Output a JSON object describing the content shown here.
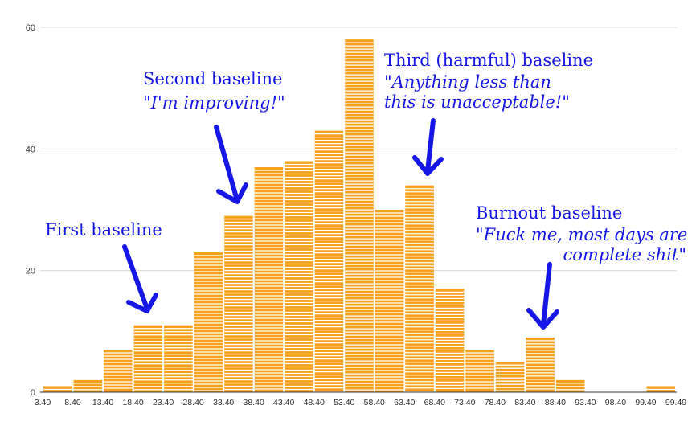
{
  "chart_data": {
    "type": "bar",
    "title": "",
    "xlabel": "",
    "ylabel": "",
    "ylim": [
      0,
      60
    ],
    "yticks": [
      0,
      20,
      40,
      60
    ],
    "grid": true,
    "colors": {
      "bar": "#f7a01c",
      "stripe": "#ffffff",
      "grid": "#d9d9d9",
      "axis": "#333333",
      "annotation": "#1616e6"
    },
    "categories": [
      "3.40",
      "8.40",
      "13.40",
      "18.40",
      "23.40",
      "28.40",
      "33.40",
      "38.40",
      "43.40",
      "48.40",
      "53.40",
      "58.40",
      "63.40",
      "68.40",
      "73.40",
      "78.40",
      "83.40",
      "88.40",
      "93.40",
      "98.40",
      "99.49"
    ],
    "values": [
      1,
      2,
      7,
      11,
      11,
      23,
      29,
      37,
      38,
      43,
      58,
      30,
      34,
      17,
      7,
      5,
      9,
      2,
      0,
      0,
      1
    ],
    "tick_labels": [
      "3.40",
      "8.40",
      "13.40",
      "18.40",
      "23.40",
      "28.40",
      "33.40",
      "38.40",
      "43.40",
      "48.40",
      "53.40",
      "58.40",
      "63.40",
      "68.40",
      "73.40",
      "78.40",
      "83.40",
      "88.40",
      "93.40",
      "98.40",
      "99.49",
      "99.49"
    ]
  },
  "annotations": {
    "first": {
      "title": "First baseline"
    },
    "second": {
      "title": "Second baseline",
      "quote": "\"I'm improving!\""
    },
    "third": {
      "title": "Third (harmful) baseline",
      "quote1": "\"Anything less than",
      "quote2": "this is unacceptable!\""
    },
    "burnout": {
      "title": "Burnout baseline",
      "quote1": "\"Fuck me, most days are",
      "quote2": "complete shit\""
    }
  }
}
